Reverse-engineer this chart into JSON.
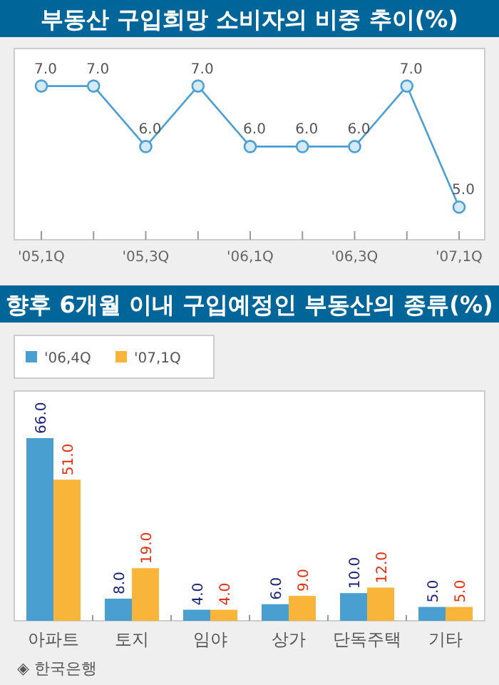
{
  "chart_data": [
    {
      "type": "line",
      "title": "부동산 구입희망 소비자의 비중 추이(%)",
      "categories": [
        "'05,1Q",
        null,
        "'05,3Q",
        null,
        "'06,1Q",
        null,
        "'06,3Q",
        null,
        "'07,1Q"
      ],
      "series": [
        {
          "color": "#4a9fd4",
          "values": [
            7,
            7,
            6,
            7,
            6,
            6,
            6,
            7,
            5
          ],
          "value_labels": [
            "7.0",
            "7.0",
            "6.0",
            "7.0",
            "6.0",
            "6.0",
            "6.0",
            "7.0",
            "5.0"
          ]
        }
      ],
      "marker": "circle"
    },
    {
      "type": "bar",
      "title": "향후 6개월 이내 구입예정인 부동산의 종류(%)",
      "categories": [
        "아파트",
        "토지",
        "임야",
        "상가",
        "단독주택",
        "기타"
      ],
      "series": [
        {
          "name": "'06,4Q",
          "color": "#4a9fd1",
          "values": [
            66,
            8,
            4,
            6,
            10,
            5
          ],
          "value_labels": [
            "66.0",
            "8.0",
            "4.0",
            "6.0",
            "10.0",
            "5.0"
          ]
        },
        {
          "name": "'07,1Q",
          "color": "#f9b43a",
          "values": [
            51,
            19,
            4,
            9,
            12,
            5
          ],
          "value_labels": [
            "51.0",
            "19.0",
            "4.0",
            "9.0",
            "12.0",
            "5.0"
          ]
        }
      ],
      "legend": "top left",
      "annotations": [
        "◈ 한국은행"
      ]
    }
  ]
}
